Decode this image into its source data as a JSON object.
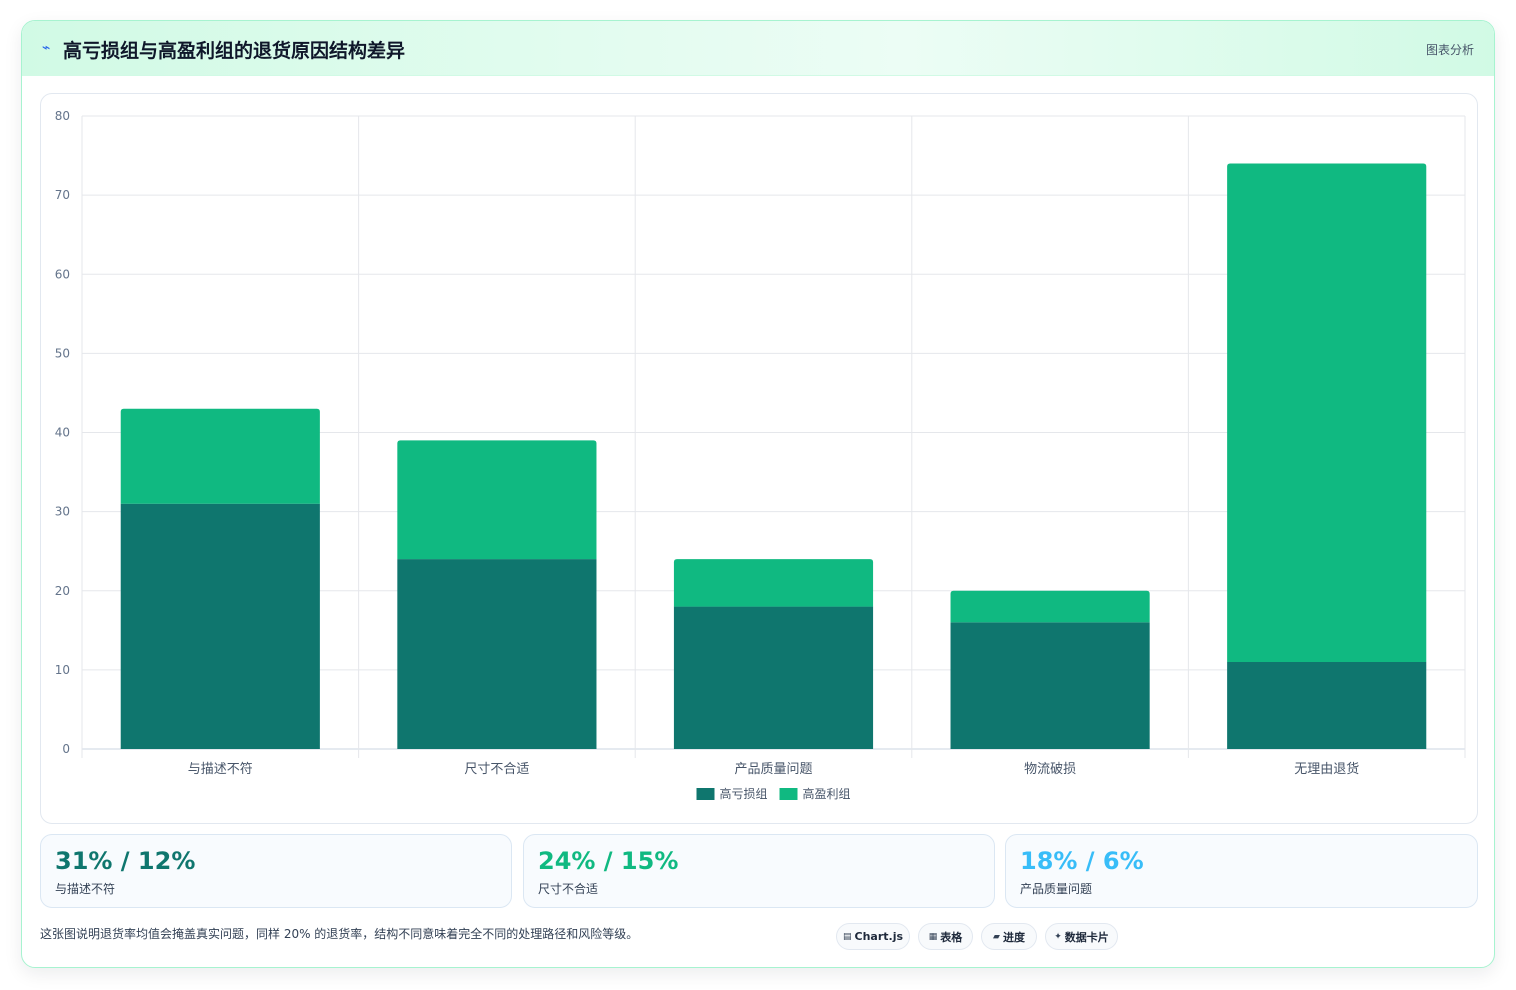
{
  "header": {
    "icon": "pulse-icon",
    "title": "高亏损组与高盈利组的退货原因结构差异",
    "section_tag": "图表分析"
  },
  "chart_data": {
    "type": "bar",
    "stacked": true,
    "categories": [
      "与描述不符",
      "尺寸不合适",
      "产品质量问题",
      "物流破损",
      "无理由退货"
    ],
    "series": [
      {
        "name": "高亏损组",
        "values": [
          31,
          24,
          18,
          16,
          11
        ],
        "color": "#0f766e"
      },
      {
        "name": "高盈利组",
        "values": [
          12,
          15,
          6,
          4,
          63
        ],
        "color": "#10b981"
      }
    ],
    "ylim": [
      0,
      80
    ],
    "yticks": [
      0,
      10,
      20,
      30,
      40,
      50,
      60,
      70,
      80
    ],
    "grid": true,
    "legend_position": "bottom"
  },
  "stats": [
    {
      "value": "31% / 12%",
      "label": "与描述不符",
      "color": "#0f766e"
    },
    {
      "value": "24% / 15%",
      "label": "尺寸不合适",
      "color": "#10b981"
    },
    {
      "value": "18% / 6%",
      "label": "产品质量问题",
      "color": "#38bdf8"
    }
  ],
  "footnote": "这张图说明退货率均值会掩盖真实问题，同样 20% 的退货率，结构不同意味着完全不同的处理路径和风险等级。",
  "pills": [
    {
      "icon": "chart-icon",
      "glyph": "▤",
      "label": "Chart.js"
    },
    {
      "icon": "table-icon",
      "glyph": "▦",
      "label": "表格"
    },
    {
      "icon": "progress-icon",
      "glyph": "▰",
      "label": "进度"
    },
    {
      "icon": "sparkle-icon",
      "glyph": "✦",
      "label": "数据卡片"
    }
  ]
}
